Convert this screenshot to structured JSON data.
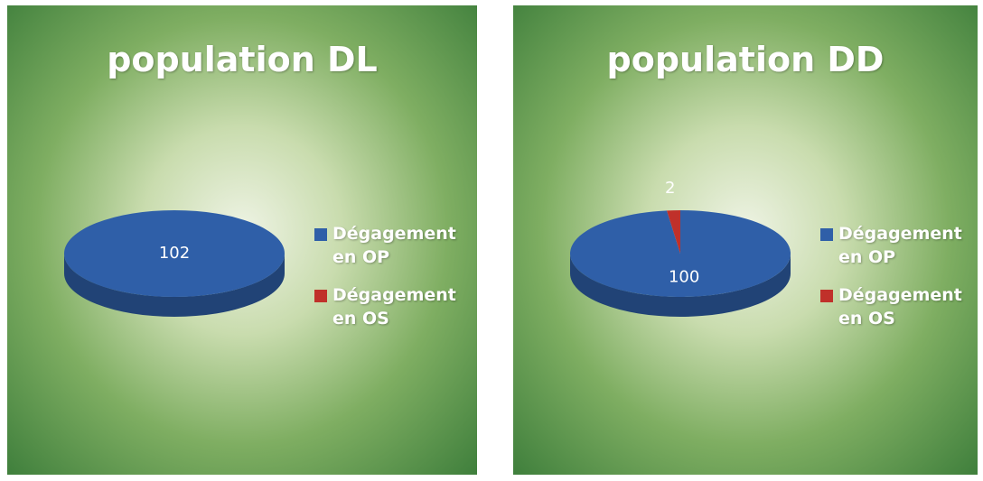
{
  "chart_data": [
    {
      "type": "pie",
      "title": "population DL",
      "categories": [
        "Dégagement en OP",
        "Dégagement en OS"
      ],
      "values": [
        102,
        0
      ],
      "colors": [
        "#2f5fa8",
        "#c0302a"
      ]
    },
    {
      "type": "pie",
      "title": "population DD",
      "categories": [
        "Dégagement en OP",
        "Dégagement en OS"
      ],
      "values": [
        100,
        2
      ],
      "colors": [
        "#2f5fa8",
        "#c0302a"
      ]
    }
  ]
}
